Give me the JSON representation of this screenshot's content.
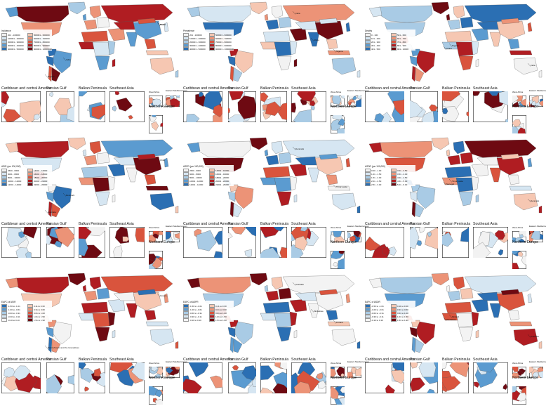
{
  "colors": {
    "sequential": [
      "#f2f2f2",
      "#d6e6f2",
      "#a9cbe5",
      "#5b9bd0",
      "#2b6fb3",
      "#f6c7b2",
      "#ec9377",
      "#d9543d",
      "#b01d22",
      "#6e0a12"
    ],
    "diverging": [
      "#2b6fb3",
      "#5b9bd0",
      "#a9cbe5",
      "#d6e6f2",
      "#f3f3f3",
      "#f6c7b2",
      "#ec9377",
      "#d9543d",
      "#b01d22",
      "#6e0a12"
    ]
  },
  "inset_titles": [
    "Caribbean and central America",
    "Persian Gulf",
    "Balkan Peninsula",
    "Southeast Asia",
    "West Africa",
    "Eastern Mediterranean",
    "Northern Europe"
  ],
  "panels": [
    {
      "legend_title": "Incidence",
      "legend": [
        "201 - 100000",
        "100001 - 200000",
        "200001 - 300000",
        "300001 - 400000",
        "400001 - 500000",
        "500001 - 600000",
        "600001 - 700000",
        "700001 - 800000",
        "800001 - 900000",
        "900001 - 10000000"
      ],
      "labels": [
        "China",
        "India",
        "Nigeria",
        "Brazil"
      ],
      "seed": 3,
      "scheme": "sequential"
    },
    {
      "legend_title": "Prevalence",
      "legend": [
        "201 - 100000",
        "100001 - 200000",
        "200001 - 300000",
        "300001 - 400000",
        "400001 - 500000",
        "500001 - 600000",
        "600001 - 700000",
        "700001 - 800000",
        "800001 - 900000",
        "900001 - 10000000"
      ],
      "labels": [
        "China",
        "India",
        "Nigeria"
      ],
      "seed": 7,
      "scheme": "sequential"
    },
    {
      "legend_title": "Deaths",
      "legend": [
        "0 - 100",
        "101 - 200",
        "201 - 300",
        "301 - 400",
        "401 - 500",
        "501 - 600",
        "601 - 700",
        "701 - 800",
        "801 - 900",
        "901 - 10000"
      ],
      "labels": [
        "China",
        "India",
        "Nigeria"
      ],
      "seed": 11,
      "scheme": "sequential"
    },
    {
      "legend_title": "ASIR (per 100,000)",
      "legend": [
        "2600 - 6000",
        "6001 - 8000",
        "8001 - 10000",
        "10001 - 12000",
        "12001 - 14000",
        "14001 - 16000",
        "16001 - 18000",
        "18001 - 20000",
        "20001 - 22000",
        "22001 - 26000"
      ],
      "labels": [
        "Denmark",
        "Australia",
        "Chile"
      ],
      "seed": 13,
      "scheme": "sequential"
    },
    {
      "legend_title": "ASPR (per 100,000)",
      "legend": [
        "2600 - 6000",
        "6001 - 8000",
        "8001 - 10000",
        "10001 - 12000",
        "12001 - 14000",
        "14001 - 16000",
        "16001 - 18000",
        "18001 - 20000",
        "20001 - 22000",
        "22001 - 26000"
      ],
      "labels": [
        "Denmark",
        "Timor-Leste"
      ],
      "seed": 17,
      "scheme": "sequential"
    },
    {
      "legend_title": "ASDR (per 100,000)",
      "legend": [
        "0.00 - 1.00",
        "1.01 - 1.50",
        "1.51 - 2.00",
        "2.01 - 2.50",
        "2.51 - 3.00",
        "3.01 - 3.50",
        "3.51 - 4.00",
        "4.01 - 4.50",
        "4.51 - 5.00",
        "5.01 - 6.00"
      ],
      "labels": [
        "Denmark",
        "Timor-Leste",
        "Senegal"
      ],
      "seed": 19,
      "scheme": "sequential"
    },
    {
      "legend_title": "EAPC of ASIR",
      "legend": [
        "-1.50 to -1.01",
        "-1.00 to -0.61",
        "-0.60 to -0.31",
        "-0.30 to -0.11",
        "-0.10 to 0.10",
        "0.11 to 0.30",
        "0.31 to 0.60",
        "0.61 to 1.00",
        "1.01 to 1.50",
        "1.51 to 1.90"
      ],
      "labels": [
        "Saint Vincent and the Grenadines",
        "Greece"
      ],
      "seed": 23,
      "scheme": "diverging"
    },
    {
      "legend_title": "EAPC of ASPR",
      "legend": [
        "-1.50 to -1.01",
        "-1.00 to -0.61",
        "-0.60 to -0.31",
        "-0.30 to -0.11",
        "-0.10 to 0.10",
        "0.11 to 0.30",
        "0.31 to 0.60",
        "0.61 to 1.00",
        "1.01 to 1.50",
        "1.51 to 1.90"
      ],
      "labels": [
        "Finland",
        "Zimbabwe",
        "Australia"
      ],
      "seed": 29,
      "scheme": "diverging"
    },
    {
      "legend_title": "EAPC of ASDR",
      "legend": [
        "-1.50 to -1.01",
        "-1.00 to -0.61",
        "-0.60 to -0.31",
        "-0.30 to -0.11",
        "-0.10 to 0.10",
        "0.11 to 0.30",
        "0.31 to 0.60",
        "0.61 to 1.00",
        "1.01 to 1.50",
        "1.51 to 1.90"
      ],
      "labels": [
        "Finland",
        "Zimbabwe",
        "Australia"
      ],
      "seed": 31,
      "scheme": "diverging"
    }
  ]
}
